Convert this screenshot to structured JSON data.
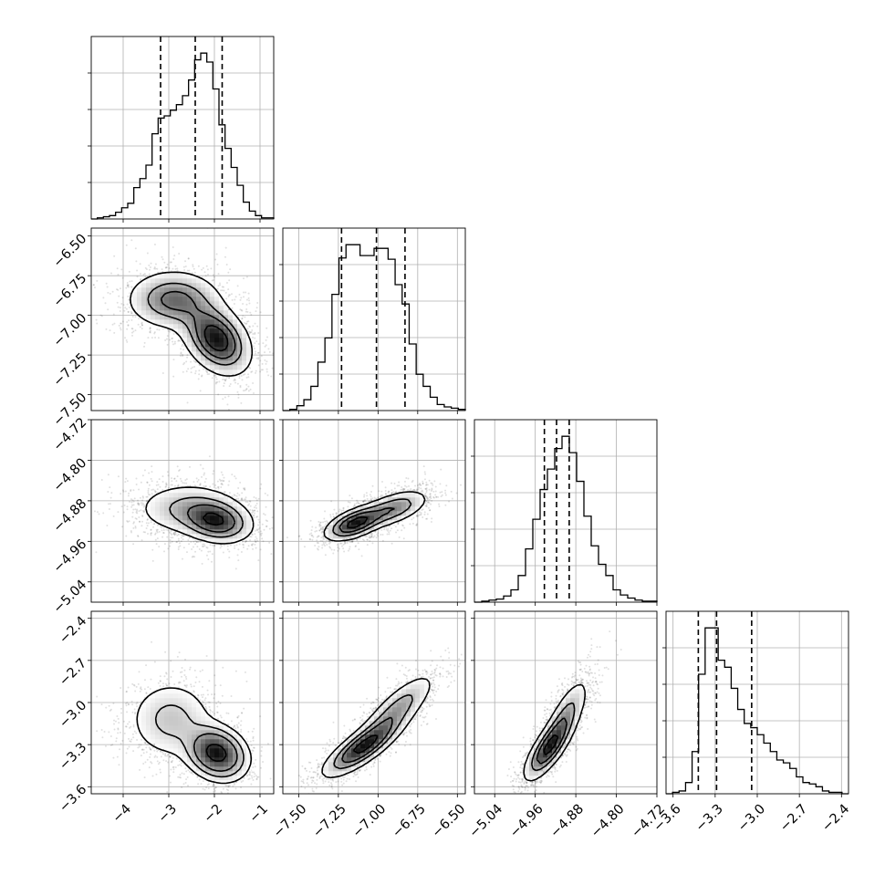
{
  "chart_data": {
    "type": "corner",
    "n_params": 4,
    "grid": true,
    "levels": 4,
    "quantiles": [
      0.16,
      0.5,
      0.84
    ],
    "parameters": [
      {
        "index": 0,
        "range": [
          -4.7,
          -0.7
        ],
        "ticks": [
          -4,
          -3,
          -2,
          -1
        ],
        "tick_labels": [
          "−4",
          "−3",
          "−2",
          "−1"
        ],
        "quantile_values": [
          -3.18,
          -2.42,
          -1.83
        ]
      },
      {
        "index": 1,
        "range": [
          -7.6,
          -6.45
        ],
        "ticks": [
          -7.5,
          -7.25,
          -7.0,
          -6.75,
          -6.5
        ],
        "tick_labels": [
          "−7.50",
          "−7.25",
          "−7.00",
          "−6.75",
          "−6.50"
        ],
        "quantile_values": [
          -7.23,
          -7.01,
          -6.83
        ]
      },
      {
        "index": 2,
        "range": [
          -5.08,
          -4.72
        ],
        "ticks": [
          -5.04,
          -4.96,
          -4.88,
          -4.8,
          -4.72
        ],
        "tick_labels": [
          "−5.04",
          "−4.96",
          "−4.88",
          "−4.80",
          "−4.72"
        ],
        "quantile_values": [
          -4.942,
          -4.918,
          -4.893
        ]
      },
      {
        "index": 3,
        "range": [
          -3.65,
          -2.35
        ],
        "ticks": [
          -3.6,
          -3.3,
          -3.0,
          -2.7,
          -2.4
        ],
        "tick_labels": [
          "−3.6",
          "−3.3",
          "−3.0",
          "−2.7",
          "−2.4"
        ],
        "quantile_values": [
          -3.42,
          -3.29,
          -3.04
        ]
      }
    ],
    "histograms": [
      {
        "param": 0,
        "y": [
          0,
          1,
          2,
          3,
          6,
          10,
          14,
          28,
          36,
          48,
          76,
          90,
          92,
          97,
          102,
          110,
          124,
          142,
          148,
          140,
          116,
          84,
          63,
          46,
          30,
          15,
          7,
          3,
          1,
          1
        ]
      },
      {
        "param": 1,
        "y": [
          0,
          1,
          4,
          9,
          20,
          40,
          60,
          96,
          126,
          137,
          137,
          128,
          128,
          134,
          134,
          125,
          104,
          88,
          55,
          30,
          20,
          11,
          5,
          3,
          2,
          1
        ]
      },
      {
        "param": 2,
        "y": [
          0,
          1,
          2,
          3,
          6,
          12,
          26,
          52,
          81,
          110,
          130,
          150,
          162,
          146,
          118,
          84,
          55,
          37,
          26,
          12,
          7,
          4,
          2,
          1,
          1
        ]
      },
      {
        "param": 3,
        "y": [
          0,
          1,
          2,
          8,
          30,
          85,
          118,
          118,
          95,
          90,
          75,
          60,
          50,
          47,
          42,
          36,
          30,
          24,
          22,
          18,
          12,
          8,
          7,
          5,
          2,
          1,
          1,
          0
        ]
      }
    ],
    "pairs": [
      {
        "x_param": 0,
        "y_param": 1,
        "modes": [
          {
            "x": -2.9,
            "y": -6.9,
            "sx": 0.55,
            "sy": 0.1,
            "rho": 0.0,
            "w": 0.45
          },
          {
            "x": -1.95,
            "y": -7.15,
            "sx": 0.4,
            "sy": 0.12,
            "rho": -0.35,
            "w": 0.55
          }
        ]
      },
      {
        "x_param": 0,
        "y_param": 2,
        "modes": [
          {
            "x": -2.6,
            "y": -4.895,
            "sx": 0.6,
            "sy": 0.027,
            "rho": 0.0,
            "w": 0.45
          },
          {
            "x": -1.95,
            "y": -4.92,
            "sx": 0.4,
            "sy": 0.022,
            "rho": -0.2,
            "w": 0.55
          }
        ]
      },
      {
        "x_param": 0,
        "y_param": 3,
        "modes": [
          {
            "x": -2.95,
            "y": -3.12,
            "sx": 0.5,
            "sy": 0.15,
            "rho": 0.0,
            "w": 0.4
          },
          {
            "x": -1.95,
            "y": -3.36,
            "sx": 0.35,
            "sy": 0.1,
            "rho": -0.2,
            "w": 0.6
          }
        ]
      },
      {
        "x_param": 1,
        "y_param": 2,
        "modes": [
          {
            "x": -7.15,
            "y": -4.925,
            "sx": 0.1,
            "sy": 0.018,
            "rho": 0.55,
            "w": 0.55
          },
          {
            "x": -6.9,
            "y": -4.895,
            "sx": 0.12,
            "sy": 0.02,
            "rho": 0.55,
            "w": 0.45
          }
        ]
      },
      {
        "x_param": 1,
        "y_param": 3,
        "modes": [
          {
            "x": -7.1,
            "y": -3.32,
            "sx": 0.13,
            "sy": 0.11,
            "rho": 0.8,
            "w": 0.6
          },
          {
            "x": -6.88,
            "y": -3.05,
            "sx": 0.13,
            "sy": 0.14,
            "rho": 0.8,
            "w": 0.4
          }
        ]
      },
      {
        "x_param": 2,
        "y_param": 3,
        "modes": [
          {
            "x": -4.935,
            "y": -3.33,
            "sx": 0.025,
            "sy": 0.12,
            "rho": 0.75,
            "w": 0.6
          },
          {
            "x": -4.9,
            "y": -3.1,
            "sx": 0.025,
            "sy": 0.15,
            "rho": 0.75,
            "w": 0.4
          }
        ]
      }
    ]
  }
}
